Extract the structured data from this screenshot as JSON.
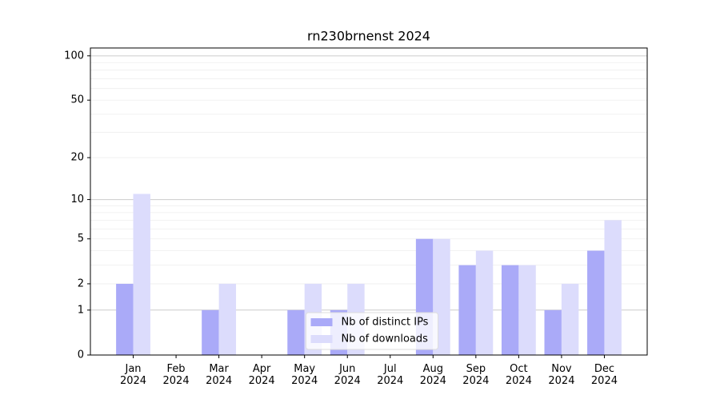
{
  "chart_data": {
    "type": "bar",
    "title": "rn230brnenst 2024",
    "categories": [
      "Jan\n2024",
      "Feb\n2024",
      "Mar\n2024",
      "Apr\n2024",
      "May\n2024",
      "Jun\n2024",
      "Jul\n2024",
      "Aug\n2024",
      "Sep\n2024",
      "Oct\n2024",
      "Nov\n2024",
      "Dec\n2024"
    ],
    "series": [
      {
        "name": "Nb of distinct IPs",
        "color": "#aaaaf8",
        "values": [
          2,
          0,
          1,
          0,
          1,
          1,
          0,
          5,
          3,
          3,
          1,
          4
        ]
      },
      {
        "name": "Nb of downloads",
        "color": "#dcdcfc",
        "values": [
          11,
          0,
          2,
          0,
          2,
          2,
          0,
          5,
          4,
          3,
          2,
          7
        ]
      }
    ],
    "yscale": "log1p",
    "ylim": [
      0,
      113
    ],
    "yticks": [
      0,
      1,
      2,
      5,
      10,
      20,
      50,
      100
    ],
    "ygrid_major": [
      1,
      10,
      100
    ],
    "ygrid_minor": [
      2,
      3,
      4,
      5,
      6,
      7,
      8,
      9,
      20,
      30,
      40,
      50,
      60,
      70,
      80,
      90
    ],
    "legend": "lower center"
  }
}
